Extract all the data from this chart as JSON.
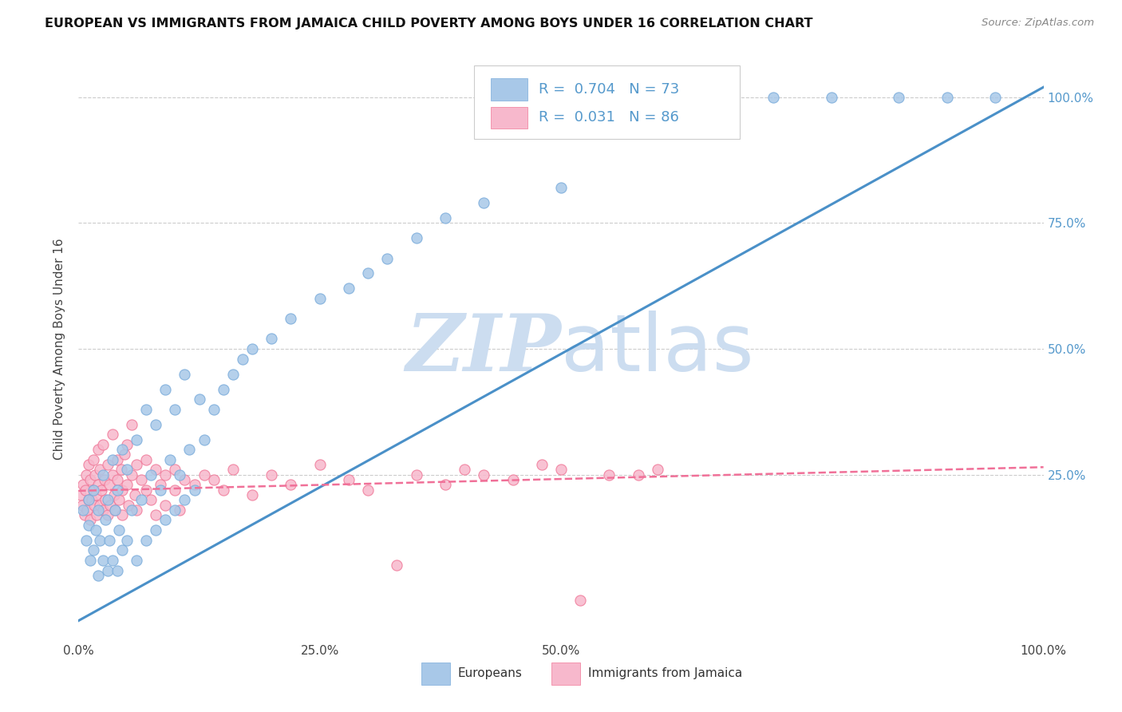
{
  "title": "EUROPEAN VS IMMIGRANTS FROM JAMAICA CHILD POVERTY AMONG BOYS UNDER 16 CORRELATION CHART",
  "source": "Source: ZipAtlas.com",
  "ylabel": "Child Poverty Among Boys Under 16",
  "xlim": [
    0,
    1.0
  ],
  "ylim": [
    -0.08,
    1.08
  ],
  "blue_color": "#a8c8e8",
  "blue_edge": "#7aacdb",
  "pink_color": "#f7b8cc",
  "pink_edge": "#f07898",
  "line_blue": "#4a90c8",
  "line_pink": "#f07098",
  "legend_R_blue": "0.704",
  "legend_N_blue": "73",
  "legend_R_pink": "0.031",
  "legend_N_pink": "86",
  "label_color": "#5599cc",
  "watermark_color": "#ccddf0",
  "blue_line_x0": 0.0,
  "blue_line_y0": -0.04,
  "blue_line_x1": 1.0,
  "blue_line_y1": 1.02,
  "pink_line_x0": 0.0,
  "pink_line_y0": 0.218,
  "pink_line_x1": 1.0,
  "pink_line_y1": 0.265,
  "blue_x": [
    0.005,
    0.008,
    0.01,
    0.01,
    0.012,
    0.015,
    0.015,
    0.018,
    0.02,
    0.02,
    0.022,
    0.025,
    0.025,
    0.028,
    0.03,
    0.03,
    0.032,
    0.035,
    0.035,
    0.038,
    0.04,
    0.04,
    0.042,
    0.045,
    0.045,
    0.05,
    0.05,
    0.055,
    0.06,
    0.06,
    0.065,
    0.07,
    0.07,
    0.075,
    0.08,
    0.08,
    0.085,
    0.09,
    0.09,
    0.095,
    0.1,
    0.1,
    0.105,
    0.11,
    0.11,
    0.115,
    0.12,
    0.125,
    0.13,
    0.14,
    0.15,
    0.16,
    0.17,
    0.18,
    0.2,
    0.22,
    0.25,
    0.28,
    0.3,
    0.32,
    0.35,
    0.38,
    0.42,
    0.5,
    0.52,
    0.55,
    0.6,
    0.65,
    0.72,
    0.78,
    0.85,
    0.9,
    0.95
  ],
  "blue_y": [
    0.18,
    0.12,
    0.15,
    0.2,
    0.08,
    0.1,
    0.22,
    0.14,
    0.05,
    0.18,
    0.12,
    0.08,
    0.25,
    0.16,
    0.06,
    0.2,
    0.12,
    0.08,
    0.28,
    0.18,
    0.06,
    0.22,
    0.14,
    0.1,
    0.3,
    0.12,
    0.26,
    0.18,
    0.08,
    0.32,
    0.2,
    0.12,
    0.38,
    0.25,
    0.14,
    0.35,
    0.22,
    0.16,
    0.42,
    0.28,
    0.18,
    0.38,
    0.25,
    0.2,
    0.45,
    0.3,
    0.22,
    0.4,
    0.32,
    0.38,
    0.42,
    0.45,
    0.48,
    0.5,
    0.52,
    0.56,
    0.6,
    0.62,
    0.65,
    0.68,
    0.72,
    0.76,
    0.79,
    0.82,
    1.0,
    1.0,
    1.0,
    1.0,
    1.0,
    1.0,
    1.0,
    1.0,
    1.0
  ],
  "pink_x": [
    0.002,
    0.004,
    0.005,
    0.006,
    0.007,
    0.008,
    0.009,
    0.01,
    0.01,
    0.012,
    0.012,
    0.014,
    0.015,
    0.015,
    0.016,
    0.017,
    0.018,
    0.019,
    0.02,
    0.02,
    0.022,
    0.022,
    0.024,
    0.025,
    0.025,
    0.027,
    0.028,
    0.03,
    0.03,
    0.032,
    0.033,
    0.035,
    0.035,
    0.037,
    0.038,
    0.04,
    0.04,
    0.042,
    0.044,
    0.045,
    0.045,
    0.048,
    0.05,
    0.05,
    0.052,
    0.055,
    0.055,
    0.058,
    0.06,
    0.06,
    0.065,
    0.07,
    0.07,
    0.075,
    0.08,
    0.08,
    0.085,
    0.09,
    0.09,
    0.1,
    0.1,
    0.105,
    0.11,
    0.12,
    0.13,
    0.14,
    0.15,
    0.16,
    0.18,
    0.2,
    0.22,
    0.25,
    0.28,
    0.3,
    0.33,
    0.35,
    0.38,
    0.4,
    0.42,
    0.45,
    0.48,
    0.5,
    0.52,
    0.55,
    0.58,
    0.6
  ],
  "pink_y": [
    0.21,
    0.19,
    0.23,
    0.17,
    0.22,
    0.25,
    0.18,
    0.2,
    0.27,
    0.16,
    0.24,
    0.2,
    0.22,
    0.28,
    0.19,
    0.25,
    0.21,
    0.17,
    0.23,
    0.3,
    0.19,
    0.26,
    0.22,
    0.18,
    0.31,
    0.24,
    0.2,
    0.17,
    0.27,
    0.23,
    0.19,
    0.25,
    0.33,
    0.21,
    0.18,
    0.24,
    0.28,
    0.2,
    0.26,
    0.22,
    0.17,
    0.29,
    0.23,
    0.31,
    0.19,
    0.25,
    0.35,
    0.21,
    0.27,
    0.18,
    0.24,
    0.22,
    0.28,
    0.2,
    0.26,
    0.17,
    0.23,
    0.25,
    0.19,
    0.22,
    0.26,
    0.18,
    0.24,
    0.23,
    0.25,
    0.24,
    0.22,
    0.26,
    0.21,
    0.25,
    0.23,
    0.27,
    0.24,
    0.22,
    0.07,
    0.25,
    0.23,
    0.26,
    0.25,
    0.24,
    0.27,
    0.26,
    0.0,
    0.25,
    0.25,
    0.26
  ]
}
